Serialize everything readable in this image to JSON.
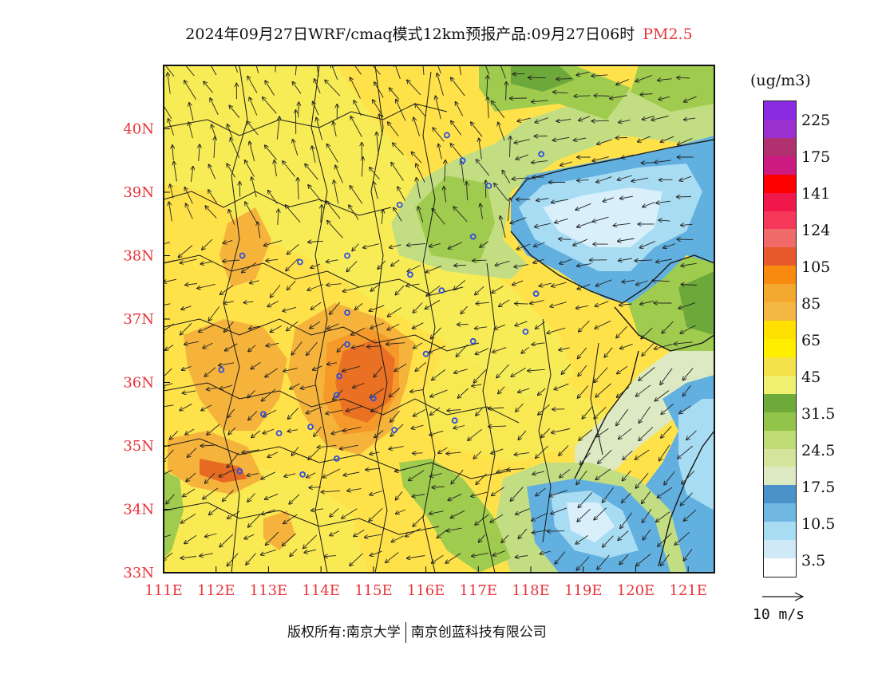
{
  "title": {
    "main": "2024年09月27日WRF/cmaq模式12km预报产品:09月27日06时",
    "pollutant": "PM2.5"
  },
  "map": {
    "lon_range": [
      111,
      121.5
    ],
    "lat_range": [
      33,
      41
    ],
    "lon_ticks": [
      "111E",
      "112E",
      "113E",
      "114E",
      "115E",
      "116E",
      "117E",
      "118E",
      "119E",
      "120E",
      "121E"
    ],
    "lat_ticks": [
      "33N",
      "34N",
      "35N",
      "36N",
      "37N",
      "38N",
      "39N",
      "40N"
    ],
    "level_colors": {
      "very_light_blue": "#d9f0fb",
      "light_blue": "#a8dcf3",
      "blue": "#62b0df",
      "dark_blue": "#3f86c6",
      "pale_green": "#dde9c2",
      "light_green": "#c3dd82",
      "green": "#9fcb4e",
      "dark_green": "#6da83a",
      "yellow_light": "#f4ef5a",
      "yellow": "#ffe24a",
      "yellow_deep": "#ffd500",
      "orange_light": "#f5b33c",
      "orange": "#f59a2a",
      "orange_deep": "#e86a22"
    },
    "city_marker_color": "#2e4fe0"
  },
  "legend": {
    "unit": "(ug/m3)",
    "labels": [
      "225",
      "175",
      "141",
      "124",
      "105",
      "85",
      "65",
      "45",
      "31.5",
      "24.5",
      "17.5",
      "10.5",
      "3.5"
    ],
    "colors_top_to_bottom": [
      "#8a2be2",
      "#9b30d0",
      "#b03070",
      "#cc1a80",
      "#ff0000",
      "#f0184a",
      "#f5385a",
      "#f06a6a",
      "#e85a2a",
      "#f88a10",
      "#f5a830",
      "#f3b842",
      "#ffe000",
      "#ffee00",
      "#f4e24a",
      "#f0f070",
      "#6fab3a",
      "#92c44a",
      "#bedc72",
      "#d4e49a",
      "#dde9c2",
      "#4a93c8",
      "#70b7e3",
      "#a8dcf3",
      "#cfe9f7",
      "#ffffff"
    ]
  },
  "wind_reference": {
    "label": "10 m/s"
  },
  "footer": {
    "copyright_left": "版权所有:南京大学",
    "copyright_right": "南京创蓝科技有限公司"
  }
}
